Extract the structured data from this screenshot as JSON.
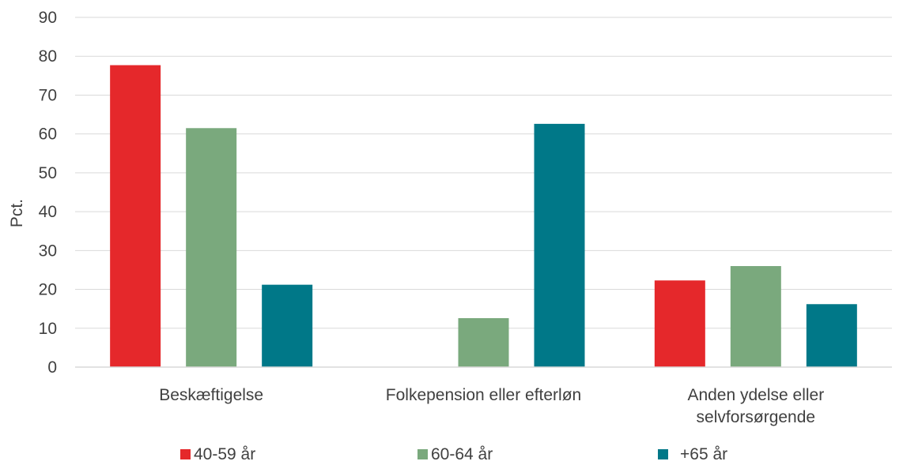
{
  "chart_data": {
    "type": "bar",
    "title": "",
    "xlabel": "",
    "ylabel": "Pct.",
    "ylim": [
      0,
      90
    ],
    "yticks": [
      0,
      10,
      20,
      30,
      40,
      50,
      60,
      70,
      80,
      90
    ],
    "grid": true,
    "legend_position": "bottom",
    "categories": [
      [
        "Beskæftigelse"
      ],
      [
        "Folkepension eller efterløn"
      ],
      [
        "Anden ydelse eller",
        "selvforsørgende"
      ]
    ],
    "series": [
      {
        "name": "40-59 år",
        "color": "#e5282b",
        "values": [
          77.7,
          0,
          22.3
        ]
      },
      {
        "name": "60-64 år",
        "color": "#7aa97d",
        "values": [
          61.5,
          12.6,
          26.0
        ]
      },
      {
        "name": "+65 år",
        "color": "#007888",
        "values": [
          21.2,
          62.6,
          16.2
        ]
      }
    ]
  }
}
